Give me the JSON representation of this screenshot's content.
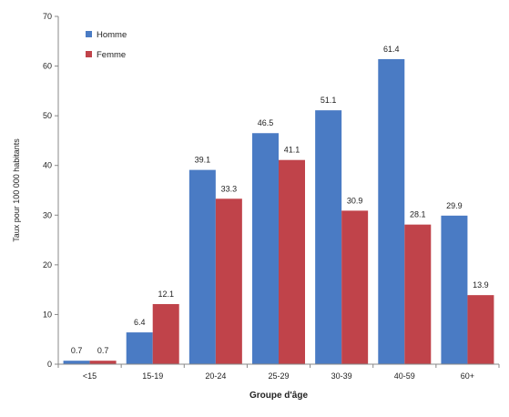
{
  "chart_data": {
    "type": "bar",
    "categories": [
      "<15",
      "15-19",
      "20-24",
      "25-29",
      "30-39",
      "40-59",
      "60+"
    ],
    "series": [
      {
        "name": "Homme",
        "values": [
          0.7,
          6.4,
          39.1,
          46.5,
          51.1,
          61.4,
          29.9
        ],
        "color": "#4a7bc4"
      },
      {
        "name": "Femme",
        "values": [
          0.7,
          12.1,
          33.3,
          41.1,
          30.9,
          28.1,
          13.9
        ],
        "color": "#c0434a"
      }
    ],
    "xlabel": "Groupe d'âge",
    "ylabel": "Taux pour 100 000 habitants",
    "ylim": [
      0,
      70
    ],
    "yticks": [
      0,
      10,
      20,
      30,
      40,
      50,
      60,
      70
    ],
    "data_labels": true,
    "grid": false,
    "legend_position": "top-left"
  }
}
